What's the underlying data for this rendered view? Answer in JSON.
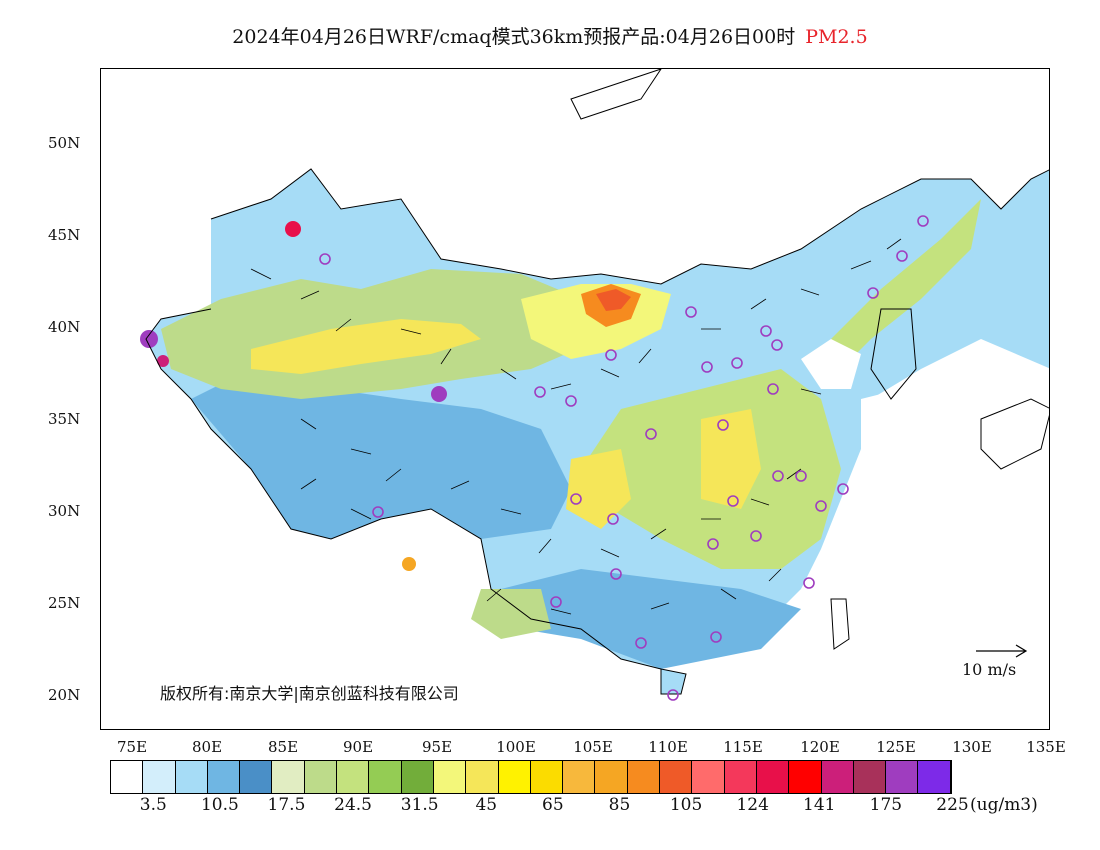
{
  "title": {
    "main": "2024年04月26日WRF/cmaq模式36km预报产品:04月26日00时",
    "variable": "PM2.5"
  },
  "axes": {
    "lat_labels": [
      "50N",
      "45N",
      "40N",
      "35N",
      "30N",
      "25N",
      "20N"
    ],
    "lon_labels": [
      "75E",
      "80E",
      "85E",
      "90E",
      "95E",
      "100E",
      "105E",
      "110E",
      "115E",
      "120E",
      "125E",
      "130E",
      "135E"
    ]
  },
  "copyright": "版权所有:南京大学|南京创蓝科技有限公司",
  "wind_scale": "10 m/s",
  "legend": {
    "colors": [
      "#ffffff",
      "#d3eefb",
      "#a6dcf6",
      "#6fb6e3",
      "#4a8fc7",
      "#e1edc2",
      "#bddb8a",
      "#c4e27e",
      "#94cc54",
      "#72ad3a",
      "#f3f77a",
      "#f5e659",
      "#fff200",
      "#fbdc00",
      "#f7b83c",
      "#f5a623",
      "#f68b1f",
      "#ef5a28",
      "#ff6b6b",
      "#f4385b",
      "#e8104a",
      "#ff0000",
      "#cc1f7a",
      "#a8315a",
      "#9f3dbf",
      "#7d2ae8"
    ],
    "labels": [
      "3.5",
      "10.5",
      "17.5",
      "24.5",
      "31.5",
      "45",
      "65",
      "85",
      "105",
      "124",
      "141",
      "175",
      "225"
    ],
    "unit": "(ug/m3)"
  }
}
